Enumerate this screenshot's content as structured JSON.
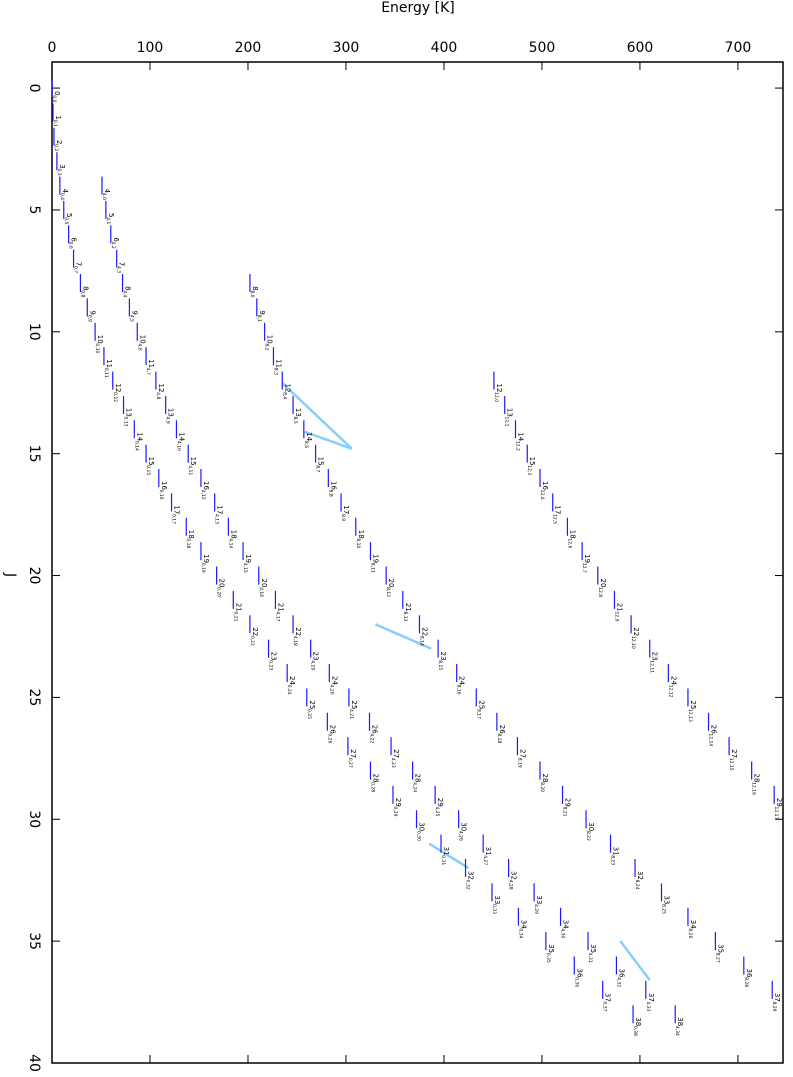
{
  "chart_data": {
    "type": "level-diagram",
    "xlabel": "Energy [K]",
    "ylabel": "J",
    "xlim": [
      0,
      746
    ],
    "ylim": [
      -1.07,
      40
    ],
    "xticks": [
      0,
      100,
      200,
      300,
      400,
      500,
      600,
      700
    ],
    "yticks": [
      0,
      5,
      10,
      15,
      20,
      25,
      30,
      35,
      40
    ],
    "level_color": "#1a1aff",
    "transition_color": "#87cefa",
    "rows": [
      {
        "J": 0,
        "levels": [
          {
            "E": 0,
            "sub": "0,0"
          }
        ]
      },
      {
        "J": 1,
        "levels": [
          {
            "E": 1,
            "sub": "0,1"
          }
        ]
      },
      {
        "J": 2,
        "levels": [
          {
            "E": 2,
            "sub": "0,2"
          }
        ]
      },
      {
        "J": 3,
        "levels": [
          {
            "E": 5,
            "sub": "0,3"
          }
        ]
      },
      {
        "J": 4,
        "levels": [
          {
            "E": 8,
            "sub": "0,4"
          },
          {
            "E": 51,
            "sub": "4,0"
          }
        ]
      },
      {
        "J": 5,
        "levels": [
          {
            "E": 12,
            "sub": "0,5"
          },
          {
            "E": 55,
            "sub": "4,1"
          }
        ]
      },
      {
        "J": 6,
        "levels": [
          {
            "E": 17,
            "sub": "0,6"
          },
          {
            "E": 60,
            "sub": "4,2"
          }
        ]
      },
      {
        "J": 7,
        "levels": [
          {
            "E": 22,
            "sub": "0,7"
          },
          {
            "E": 66,
            "sub": "4,3"
          }
        ]
      },
      {
        "J": 8,
        "levels": [
          {
            "E": 29,
            "sub": "0,8"
          },
          {
            "E": 72,
            "sub": "4,4"
          },
          {
            "E": 202,
            "sub": "8,0"
          }
        ]
      },
      {
        "J": 9,
        "levels": [
          {
            "E": 36,
            "sub": "0,9"
          },
          {
            "E": 79,
            "sub": "4,5"
          },
          {
            "E": 209,
            "sub": "8,1"
          }
        ]
      },
      {
        "J": 10,
        "levels": [
          {
            "E": 44,
            "sub": "0,10"
          },
          {
            "E": 87,
            "sub": "4,6"
          },
          {
            "E": 217,
            "sub": "8,2"
          }
        ]
      },
      {
        "J": 11,
        "levels": [
          {
            "E": 53,
            "sub": "0,11"
          },
          {
            "E": 96,
            "sub": "4,7"
          },
          {
            "E": 226,
            "sub": "8,3"
          }
        ]
      },
      {
        "J": 12,
        "levels": [
          {
            "E": 62,
            "sub": "0,12"
          },
          {
            "E": 106,
            "sub": "4,8"
          },
          {
            "E": 235,
            "sub": "8,4"
          },
          {
            "E": 451,
            "sub": "12,0"
          }
        ]
      },
      {
        "J": 13,
        "levels": [
          {
            "E": 73,
            "sub": "0,13"
          },
          {
            "E": 116,
            "sub": "4,9"
          },
          {
            "E": 246,
            "sub": "8,5"
          },
          {
            "E": 462,
            "sub": "12,1"
          }
        ]
      },
      {
        "J": 14,
        "levels": [
          {
            "E": 84,
            "sub": "0,14"
          },
          {
            "E": 127,
            "sub": "4,10"
          },
          {
            "E": 257,
            "sub": "8,6"
          },
          {
            "E": 473,
            "sub": "12,2"
          }
        ]
      },
      {
        "J": 15,
        "levels": [
          {
            "E": 96,
            "sub": "0,15"
          },
          {
            "E": 139,
            "sub": "4,11"
          },
          {
            "E": 269,
            "sub": "8,7"
          },
          {
            "E": 485,
            "sub": "12,3"
          }
        ]
      },
      {
        "J": 16,
        "levels": [
          {
            "E": 109,
            "sub": "0,16"
          },
          {
            "E": 152,
            "sub": "4,12"
          },
          {
            "E": 282,
            "sub": "8,8"
          },
          {
            "E": 498,
            "sub": "12,4"
          }
        ]
      },
      {
        "J": 17,
        "levels": [
          {
            "E": 122,
            "sub": "0,17"
          },
          {
            "E": 166,
            "sub": "4,13"
          },
          {
            "E": 295,
            "sub": "8,9"
          },
          {
            "E": 511,
            "sub": "12,5"
          }
        ]
      },
      {
        "J": 18,
        "levels": [
          {
            "E": 137,
            "sub": "0,18"
          },
          {
            "E": 180,
            "sub": "4,14"
          },
          {
            "E": 310,
            "sub": "8,10"
          },
          {
            "E": 526,
            "sub": "12,6"
          }
        ]
      },
      {
        "J": 19,
        "levels": [
          {
            "E": 152,
            "sub": "0,19"
          },
          {
            "E": 195,
            "sub": "4,15"
          },
          {
            "E": 325,
            "sub": "8,11"
          },
          {
            "E": 541,
            "sub": "12,7"
          }
        ]
      },
      {
        "J": 20,
        "levels": [
          {
            "E": 168,
            "sub": "0,20"
          },
          {
            "E": 211,
            "sub": "4,16"
          },
          {
            "E": 341,
            "sub": "8,12"
          },
          {
            "E": 557,
            "sub": "12,8"
          }
        ]
      },
      {
        "J": 21,
        "levels": [
          {
            "E": 185,
            "sub": "0,21"
          },
          {
            "E": 228,
            "sub": "4,17"
          },
          {
            "E": 358,
            "sub": "8,13"
          },
          {
            "E": 574,
            "sub": "12,9"
          }
        ]
      },
      {
        "J": 22,
        "levels": [
          {
            "E": 202,
            "sub": "0,22"
          },
          {
            "E": 246,
            "sub": "4,18"
          },
          {
            "E": 375,
            "sub": "8,14"
          },
          {
            "E": 591,
            "sub": "12,10"
          }
        ]
      },
      {
        "J": 23,
        "levels": [
          {
            "E": 221,
            "sub": "0,23"
          },
          {
            "E": 264,
            "sub": "4,19"
          },
          {
            "E": 394,
            "sub": "8,15"
          },
          {
            "E": 610,
            "sub": "12,11"
          }
        ]
      },
      {
        "J": 24,
        "levels": [
          {
            "E": 240,
            "sub": "0,24"
          },
          {
            "E": 283,
            "sub": "4,20"
          },
          {
            "E": 413,
            "sub": "8,16"
          },
          {
            "E": 629,
            "sub": "12,12"
          }
        ]
      },
      {
        "J": 25,
        "levels": [
          {
            "E": 260,
            "sub": "0,25"
          },
          {
            "E": 303,
            "sub": "4,21"
          },
          {
            "E": 433,
            "sub": "8,17"
          },
          {
            "E": 649,
            "sub": "12,13"
          }
        ]
      },
      {
        "J": 26,
        "levels": [
          {
            "E": 281,
            "sub": "0,26"
          },
          {
            "E": 324,
            "sub": "4,22"
          },
          {
            "E": 454,
            "sub": "8,18"
          },
          {
            "E": 670,
            "sub": "12,14"
          }
        ]
      },
      {
        "J": 27,
        "levels": [
          {
            "E": 302,
            "sub": "0,27"
          },
          {
            "E": 346,
            "sub": "4,23"
          },
          {
            "E": 475,
            "sub": "8,19"
          },
          {
            "E": 691,
            "sub": "12,15"
          }
        ]
      },
      {
        "J": 28,
        "levels": [
          {
            "E": 325,
            "sub": "0,28"
          },
          {
            "E": 368,
            "sub": "4,24"
          },
          {
            "E": 498,
            "sub": "8,20"
          },
          {
            "E": 714,
            "sub": "12,16"
          }
        ]
      },
      {
        "J": 29,
        "levels": [
          {
            "E": 348,
            "sub": "0,29"
          },
          {
            "E": 391,
            "sub": "4,25"
          },
          {
            "E": 521,
            "sub": "8,21"
          },
          {
            "E": 737,
            "sub": "12,17"
          }
        ]
      },
      {
        "J": 30,
        "levels": [
          {
            "E": 372,
            "sub": "0,30"
          },
          {
            "E": 415,
            "sub": "4,26"
          },
          {
            "E": 545,
            "sub": "8,22"
          }
        ]
      },
      {
        "J": 31,
        "levels": [
          {
            "E": 397,
            "sub": "0,31"
          },
          {
            "E": 440,
            "sub": "4,27"
          },
          {
            "E": 570,
            "sub": "8,23"
          }
        ]
      },
      {
        "J": 32,
        "levels": [
          {
            "E": 422,
            "sub": "0,32"
          },
          {
            "E": 466,
            "sub": "4,28"
          },
          {
            "E": 595,
            "sub": "8,24"
          }
        ]
      },
      {
        "J": 33,
        "levels": [
          {
            "E": 449,
            "sub": "0,33"
          },
          {
            "E": 492,
            "sub": "4,29"
          },
          {
            "E": 622,
            "sub": "8,25"
          }
        ]
      },
      {
        "J": 34,
        "levels": [
          {
            "E": 476,
            "sub": "0,34"
          },
          {
            "E": 519,
            "sub": "4,30"
          },
          {
            "E": 649,
            "sub": "8,26"
          }
        ]
      },
      {
        "J": 35,
        "levels": [
          {
            "E": 504,
            "sub": "0,35"
          },
          {
            "E": 547,
            "sub": "4,31"
          },
          {
            "E": 677,
            "sub": "8,27"
          }
        ]
      },
      {
        "J": 36,
        "levels": [
          {
            "E": 533,
            "sub": "0,36"
          },
          {
            "E": 576,
            "sub": "4,32"
          },
          {
            "E": 706,
            "sub": "8,28"
          }
        ]
      },
      {
        "J": 37,
        "levels": [
          {
            "E": 562,
            "sub": "0,37"
          },
          {
            "E": 606,
            "sub": "4,33"
          },
          {
            "E": 735,
            "sub": "8,29"
          }
        ]
      },
      {
        "J": 38,
        "levels": [
          {
            "E": 593,
            "sub": "0,38"
          },
          {
            "E": 636,
            "sub": "4,34"
          }
        ]
      }
    ],
    "transitions": [
      {
        "E": [
          235,
          306
        ],
        "J": [
          12.1,
          14.8
        ]
      },
      {
        "E": [
          258,
          306
        ],
        "J": [
          14.1,
          14.8
        ]
      },
      {
        "E": [
          330,
          387
        ],
        "J": [
          22,
          23
        ]
      },
      {
        "E": [
          385,
          425
        ],
        "J": [
          31,
          32
        ]
      },
      {
        "E": [
          580,
          610
        ],
        "J": [
          35,
          36.6
        ]
      }
    ]
  }
}
